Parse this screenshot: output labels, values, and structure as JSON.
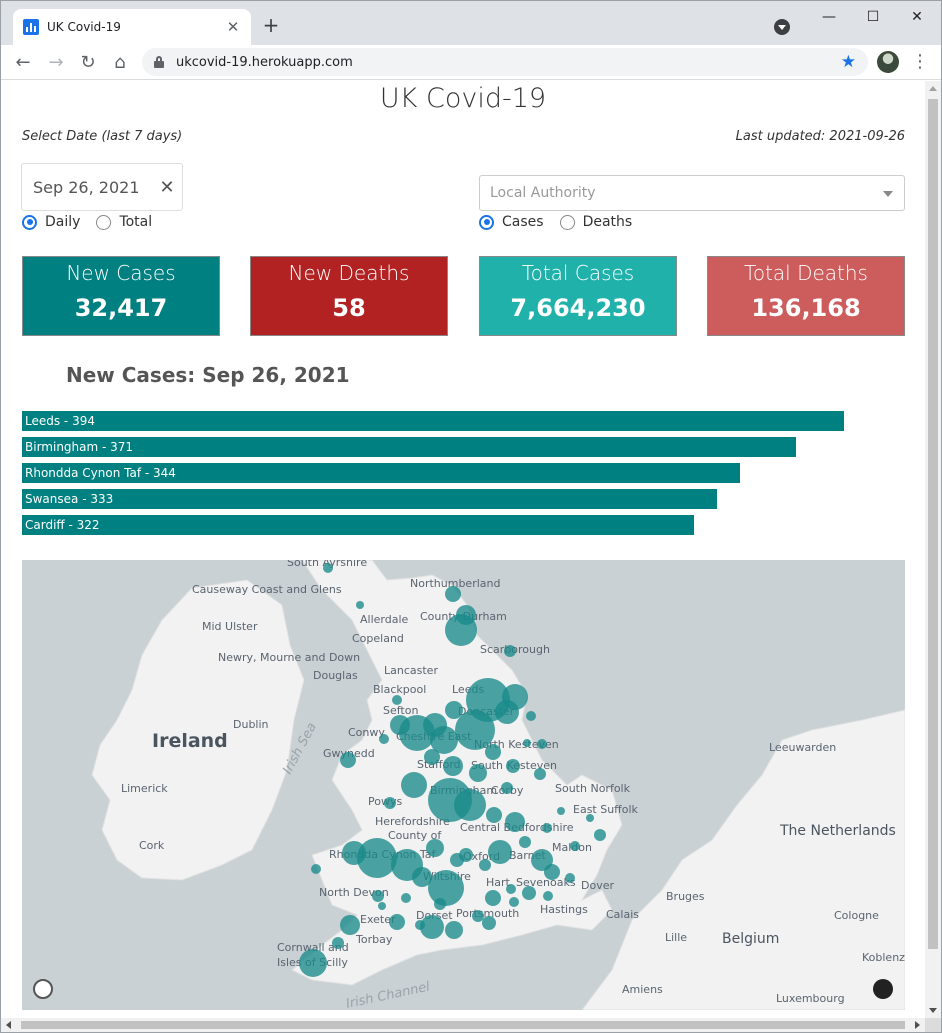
{
  "browser": {
    "tab_title": "UK Covid-19",
    "url": "ukcovid-19.herokuapp.com",
    "new_tab": "+",
    "tab_close": "✕",
    "minimize": "—",
    "maximize": "☐",
    "close": "✕",
    "back": "←",
    "forward": "→",
    "reload": "↻",
    "home": "⌂",
    "bookmark": "★",
    "menu": "⋮"
  },
  "page": {
    "title": "UK Covid-19",
    "select_date_label": "Select Date (last 7 days)",
    "last_updated": "Last updated: 2021-09-26"
  },
  "controls": {
    "date_value": "Sep 26, 2021",
    "date_clear": "✕",
    "period_options": [
      {
        "label": "Daily",
        "checked": true
      },
      {
        "label": "Total",
        "checked": false
      }
    ],
    "authority_placeholder": "Local Authority",
    "metric_options": [
      {
        "label": "Cases",
        "checked": true
      },
      {
        "label": "Deaths",
        "checked": false
      }
    ]
  },
  "cards": [
    {
      "label": "New Cases",
      "value": "32,417",
      "color": "#008080"
    },
    {
      "label": "New Deaths",
      "value": "58",
      "color": "#b22222"
    },
    {
      "label": "Total Cases",
      "value": "7,664,230",
      "color": "#20b2aa"
    },
    {
      "label": "Total Deaths",
      "value": "136,168",
      "color": "#cd5c5c"
    }
  ],
  "chart_data": {
    "type": "bar",
    "title": "New Cases: Sep 26, 2021",
    "orientation": "horizontal",
    "bar_color": "#008080",
    "categories": [
      "Leeds",
      "Birmingham",
      "Rhondda Cynon Taf",
      "Swansea",
      "Cardiff"
    ],
    "values": [
      394,
      371,
      344,
      333,
      322
    ],
    "labels": [
      "Leeds - 394",
      "Birmingham - 371",
      "Rhondda Cynon Taf - 344",
      "Swansea - 333",
      "Cardiff - 322"
    ],
    "xlim": [
      0,
      412
    ]
  },
  "map": {
    "labels": {
      "countries": [
        "Ireland",
        "The Netherlands",
        "Belgium"
      ],
      "seas": [
        "Irish Sea",
        "Irish Channel"
      ],
      "places": [
        "South Ayrshire",
        "Northumberland",
        "Causeway Coast and Glens",
        "Allerdale",
        "County Durham",
        "Mid Ulster",
        "Copeland",
        "Scarborough",
        "Newry, Mourne and Down",
        "Douglas",
        "Lancaster",
        "Blackpool",
        "Leeds",
        "Dublin",
        "Sefton",
        "Doncaster",
        "Conwy",
        "Cheshire East",
        "North Kesteven",
        "Leeuwarden",
        "Gwynedd",
        "Stafford",
        "South Kesteven",
        "Limerick",
        "Powys",
        "Birmingham",
        "Corby",
        "South Norfolk",
        "Herefordshire",
        "East Suffolk",
        "County of",
        "Central Bedfordshire",
        "The",
        "Cork",
        "Rhondda Cynon Taf",
        "Oxford",
        "Barnet",
        "Maldon",
        "Wiltshire",
        "Hart",
        "Sevenoaks",
        "Dover",
        "North Devon",
        "Bruges",
        "Exeter",
        "Dorset",
        "Portsmouth",
        "Hastings",
        "Calais",
        "Cologne",
        "Torbay",
        "Lille",
        "Cornwall and",
        "Isles of Scilly",
        "Amiens",
        "Luxembourg",
        "Koblenz"
      ]
    },
    "marker_color": "#1a8a8a"
  },
  "icons": {
    "favicon": "bar-chart-icon",
    "lock": "lock-icon",
    "profile": "avatar-icon",
    "map_logo": "mapbox-logo-icon",
    "map_info": "info-icon"
  }
}
